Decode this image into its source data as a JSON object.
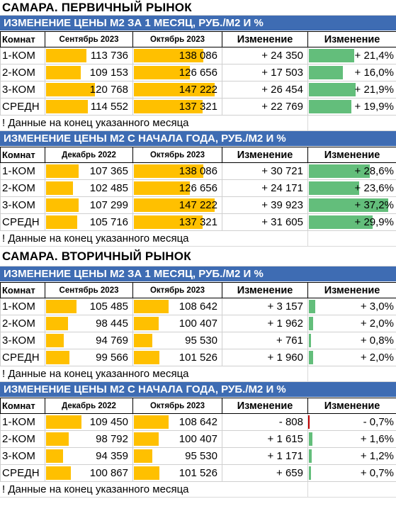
{
  "blocks": [
    {
      "market_title": "САМАРА. ПЕРВИЧНЫЙ РЫНОК",
      "sections": [
        {
          "header": "ИЗМЕНЕНИЕ ЦЕНЫ М2 ЗА 1 МЕСЯЦ, РУБ./М2 И %",
          "columns": [
            "Комнат",
            "Сентябрь 2023",
            "Октябрь 2023",
            "Изменение",
            "Изменение"
          ],
          "rows": [
            {
              "room": "1-КОМ",
              "p1": "113 736",
              "p1_v": 113736,
              "p2": "138 086",
              "p2_v": 138086,
              "abs": "+ 24 350",
              "pct": "+ 21,4%",
              "pct_v": 21.4
            },
            {
              "room": "2-КОМ",
              "p1": "109 153",
              "p1_v": 109153,
              "p2": "126 656",
              "p2_v": 126656,
              "abs": "+ 17 503",
              "pct": "+ 16,0%",
              "pct_v": 16.0
            },
            {
              "room": "3-КОМ",
              "p1": "120 768",
              "p1_v": 120768,
              "p2": "147 222",
              "p2_v": 147222,
              "abs": "+ 26 454",
              "pct": "+ 21,9%",
              "pct_v": 21.9
            },
            {
              "room": "СРЕДН",
              "p1": "114 552",
              "p1_v": 114552,
              "p2": "137 321",
              "p2_v": 137321,
              "abs": "+ 22 769",
              "pct": "+ 19,9%",
              "pct_v": 19.9
            }
          ],
          "note": "! Данные на конец указанного месяца"
        },
        {
          "header": "ИЗМЕНЕНИЕ ЦЕНЫ М2 С НАЧАЛА ГОДА, РУБ./М2 И %",
          "columns": [
            "Комнат",
            "Декабрь 2022",
            "Октябрь 2023",
            "Изменение",
            "Изменение"
          ],
          "rows": [
            {
              "room": "1-КОМ",
              "p1": "107 365",
              "p1_v": 107365,
              "p2": "138 086",
              "p2_v": 138086,
              "abs": "+ 30 721",
              "pct": "+ 28,6%",
              "pct_v": 28.6
            },
            {
              "room": "2-КОМ",
              "p1": "102 485",
              "p1_v": 102485,
              "p2": "126 656",
              "p2_v": 126656,
              "abs": "+ 24 171",
              "pct": "+ 23,6%",
              "pct_v": 23.6
            },
            {
              "room": "3-КОМ",
              "p1": "107 299",
              "p1_v": 107299,
              "p2": "147 222",
              "p2_v": 147222,
              "abs": "+ 39 923",
              "pct": "+ 37,2%",
              "pct_v": 37.2
            },
            {
              "room": "СРЕДН",
              "p1": "105 716",
              "p1_v": 105716,
              "p2": "137 321",
              "p2_v": 137321,
              "abs": "+ 31 605",
              "pct": "+ 29,9%",
              "pct_v": 29.9
            }
          ],
          "note": "! Данные на конец указанного месяца"
        }
      ]
    },
    {
      "market_title": "САМАРА. ВТОРИЧНЫЙ РЫНОК",
      "sections": [
        {
          "header": "ИЗМЕНЕНИЕ ЦЕНЫ М2 ЗА 1 МЕСЯЦ, РУБ./М2 И %",
          "columns": [
            "Комнат",
            "Сентябрь 2023",
            "Октябрь 2023",
            "Изменение",
            "Изменение"
          ],
          "rows": [
            {
              "room": "1-КОМ",
              "p1": "105 485",
              "p1_v": 105485,
              "p2": "108 642",
              "p2_v": 108642,
              "abs": "+ 3 157",
              "pct": "+ 3,0%",
              "pct_v": 3.0
            },
            {
              "room": "2-КОМ",
              "p1": "98 445",
              "p1_v": 98445,
              "p2": "100 407",
              "p2_v": 100407,
              "abs": "+ 1 962",
              "pct": "+ 2,0%",
              "pct_v": 2.0
            },
            {
              "room": "3-КОМ",
              "p1": "94 769",
              "p1_v": 94769,
              "p2": "95 530",
              "p2_v": 95530,
              "abs": "+ 761",
              "pct": "+ 0,8%",
              "pct_v": 0.8
            },
            {
              "room": "СРЕДН",
              "p1": "99 566",
              "p1_v": 99566,
              "p2": "101 526",
              "p2_v": 101526,
              "abs": "+ 1 960",
              "pct": "+ 2,0%",
              "pct_v": 2.0
            }
          ],
          "note": "! Данные на конец указанного месяца"
        },
        {
          "header": "ИЗМЕНЕНИЕ ЦЕНЫ М2 С НАЧАЛА ГОДА, РУБ./М2 И %",
          "columns": [
            "Комнат",
            "Декабрь 2022",
            "Октябрь 2023",
            "Изменение",
            "Изменение"
          ],
          "rows": [
            {
              "room": "1-КОМ",
              "p1": "109 450",
              "p1_v": 109450,
              "p2": "108 642",
              "p2_v": 108642,
              "abs": "- 808",
              "pct": "- 0,7%",
              "pct_v": -0.7
            },
            {
              "room": "2-КОМ",
              "p1": "98 792",
              "p1_v": 98792,
              "p2": "100 407",
              "p2_v": 100407,
              "abs": "+ 1 615",
              "pct": "+ 1,6%",
              "pct_v": 1.6
            },
            {
              "room": "3-КОМ",
              "p1": "94 359",
              "p1_v": 94359,
              "p2": "95 530",
              "p2_v": 95530,
              "abs": "+ 1 171",
              "pct": "+ 1,2%",
              "pct_v": 1.2
            },
            {
              "room": "СРЕДН",
              "p1": "100 867",
              "p1_v": 100867,
              "p2": "101 526",
              "p2_v": 101526,
              "abs": "+ 659",
              "pct": "+ 0,7%",
              "pct_v": 0.7
            }
          ],
          "note": "! Данные на конец указанного месяца"
        }
      ]
    }
  ],
  "colors": {
    "header_bg": "#3e6cb3",
    "price_bar": "#ffc000",
    "pct_bar": "#63be7b",
    "neg_bar": "#c00000"
  }
}
